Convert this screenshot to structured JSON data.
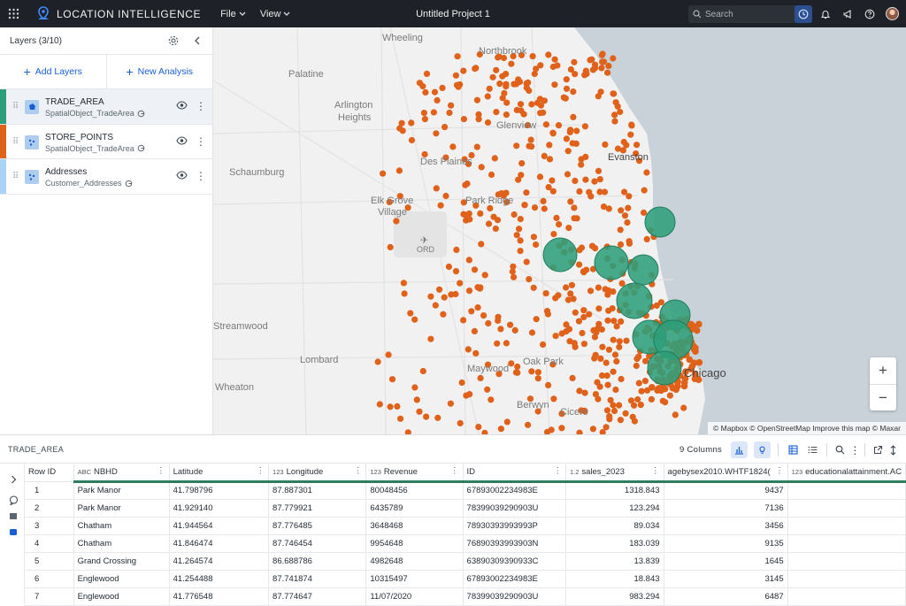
{
  "topbar": {
    "brand": "LOCATION INTELLIGENCE",
    "menus": [
      "File",
      "View"
    ],
    "project_title": "Untitled Project 1",
    "search_placeholder": "Search"
  },
  "left_panel": {
    "title": "Layers (3/10)",
    "add_layers": "Add Layers",
    "new_analysis": "New Analysis",
    "layers": [
      {
        "name": "TRADE_AREA",
        "source": "SpatialObject_TradeArea",
        "color": "#2e9e7a",
        "selected": true
      },
      {
        "name": "STORE_POINTS",
        "source": "SpatialObject_TradeArea",
        "color": "#e0611a",
        "selected": false
      },
      {
        "name": "Addresses",
        "source": "Customer_Addresses",
        "color": "#a9d3f5",
        "selected": false
      }
    ]
  },
  "map": {
    "labels": [
      "Wheeling",
      "Northbrook",
      "Palatine",
      "Arlington",
      "Heights",
      "Glenview",
      "Schaumburg",
      "Des Plaines",
      "Evanston",
      "Elk Grove",
      "Village",
      "Park Ridge",
      "ORD",
      "Lombard",
      "Maywood",
      "Oak Park",
      "Wheaton",
      "Berwyn",
      "Cicero",
      "Chicago",
      "Streamwood"
    ],
    "attribution": "© Mapbox © OpenStreetMap Improve this map © Maxar",
    "zoom_in": "+",
    "zoom_out": "−",
    "colors": {
      "land": "#f1f1f1",
      "water": "#c9d2d8",
      "points": "#e0611a",
      "trade_area": "#2e9e7a"
    }
  },
  "table": {
    "title": "TRADE_AREA",
    "columns_count": "9 Columns",
    "columns": [
      {
        "label": "Row ID",
        "type": ""
      },
      {
        "label": "NBHD",
        "type": "A-B-C"
      },
      {
        "label": "Latitude",
        "type": ""
      },
      {
        "label": "Longitude",
        "type": "1 2 3"
      },
      {
        "label": "Revenue",
        "type": "1 2 3"
      },
      {
        "label": "ID",
        "type": ""
      },
      {
        "label": "sales_2023",
        "type": "1.2"
      },
      {
        "label": "agebysex2010.WHTF1824(",
        "type": ""
      },
      {
        "label": "educationalattainment.AC",
        "type": "1 2 3"
      }
    ],
    "rows": [
      [
        "1",
        "Park Manor",
        "41.798796",
        "87.887301",
        "80048456",
        "67893002234983E",
        "1318.843",
        "9437",
        ""
      ],
      [
        "2",
        "Park Manor",
        "41.929140",
        "87.779921",
        "6435789",
        "78399039290903U",
        "123.294",
        "7136",
        ""
      ],
      [
        "3",
        "Chatham",
        "41.944564",
        "87.776485",
        "3648468",
        "78930393993993P",
        "89.034",
        "3456",
        ""
      ],
      [
        "4",
        "Chatham",
        "41.846474",
        "87.746454",
        "9954648",
        "76890393993903N",
        "183.039",
        "9135",
        ""
      ],
      [
        "5",
        "Grand Crossing",
        "41.264574",
        "86.688786",
        "4982648",
        "63890309390933C",
        "13.839",
        "1645",
        ""
      ],
      [
        "6",
        "Englewood",
        "41.254488",
        "87.741874",
        "10315497",
        "67893002234983E",
        "18.843",
        "3145",
        ""
      ],
      [
        "7",
        "Englewood",
        "41.776548",
        "87.774647",
        "11/07/2020",
        "78399039290903U",
        "983.294",
        "6487",
        ""
      ]
    ]
  }
}
